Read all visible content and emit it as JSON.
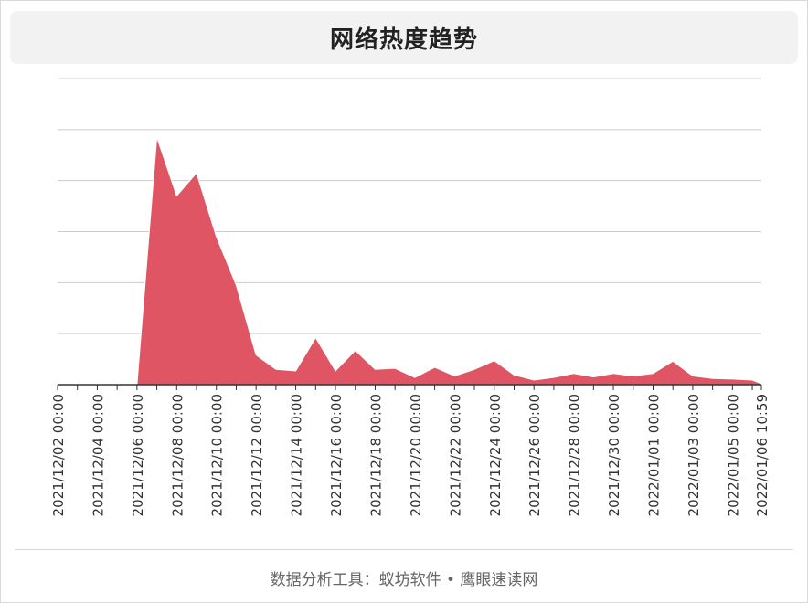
{
  "header": {
    "title": "网络热度趋势"
  },
  "footer": {
    "text": "数据分析工具：蚁坊软件 • 鹰眼速读网"
  },
  "colors": {
    "area_fill": "#e05563",
    "grid": "#cccccc",
    "axis": "#333333"
  },
  "chart_data": {
    "type": "area",
    "title": "网络热度趋势",
    "xlabel": "",
    "ylabel": "",
    "grid": true,
    "tick_labels": [
      "2021/12/02 00:00",
      "2021/12/04 00:00",
      "2021/12/06 00:00",
      "2021/12/08 00:00",
      "2021/12/10 00:00",
      "2021/12/12 00:00",
      "2021/12/14 00:00",
      "2021/12/16 00:00",
      "2021/12/18 00:00",
      "2021/12/20 00:00",
      "2021/12/22 00:00",
      "2021/12/24 00:00",
      "2021/12/26 00:00",
      "2021/12/28 00:00",
      "2021/12/30 00:00",
      "2022/01/01 00:00",
      "2022/01/03 00:00",
      "2022/01/05 00:00",
      "2022/01/06 10:59"
    ],
    "ylim": [
      0,
      6
    ],
    "y_gridlines": [
      0,
      1,
      2,
      3,
      4,
      5,
      6
    ],
    "x": [
      "2021/12/02 00:00",
      "2021/12/03 00:00",
      "2021/12/04 00:00",
      "2021/12/05 00:00",
      "2021/12/06 00:00",
      "2021/12/07 00:00",
      "2021/12/08 00:00",
      "2021/12/09 00:00",
      "2021/12/10 00:00",
      "2021/12/11 00:00",
      "2021/12/12 00:00",
      "2021/12/13 00:00",
      "2021/12/14 00:00",
      "2021/12/15 00:00",
      "2021/12/16 00:00",
      "2021/12/17 00:00",
      "2021/12/18 00:00",
      "2021/12/19 00:00",
      "2021/12/20 00:00",
      "2021/12/21 00:00",
      "2021/12/22 00:00",
      "2021/12/23 00:00",
      "2021/12/24 00:00",
      "2021/12/25 00:00",
      "2021/12/26 00:00",
      "2021/12/27 00:00",
      "2021/12/28 00:00",
      "2021/12/29 00:00",
      "2021/12/30 00:00",
      "2021/12/31 00:00",
      "2022/01/01 00:00",
      "2022/01/02 00:00",
      "2022/01/03 00:00",
      "2022/01/04 00:00",
      "2022/01/05 00:00",
      "2022/01/06 00:00",
      "2022/01/06 10:59"
    ],
    "values": [
      0,
      0,
      0,
      0,
      0,
      4.85,
      3.7,
      4.15,
      2.9,
      1.95,
      0.58,
      0.3,
      0.27,
      0.92,
      0.27,
      0.67,
      0.3,
      0.32,
      0.14,
      0.34,
      0.17,
      0.3,
      0.47,
      0.19,
      0.09,
      0.14,
      0.22,
      0.15,
      0.22,
      0.17,
      0.22,
      0.46,
      0.17,
      0.12,
      0.11,
      0.09,
      0.02
    ]
  }
}
